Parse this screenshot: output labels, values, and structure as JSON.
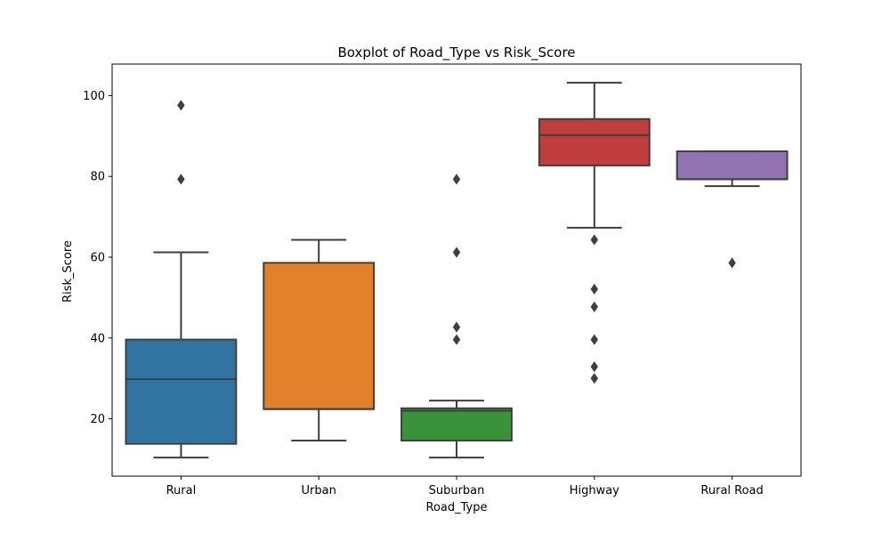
{
  "chart_data": {
    "type": "box",
    "title": "Boxplot of Road_Type vs Risk_Score",
    "xlabel": "Road_Type",
    "ylabel": "Risk_Score",
    "ylim": [
      5.8,
      107.8
    ],
    "yticks": [
      20,
      40,
      60,
      80,
      100
    ],
    "grid": false,
    "categories": [
      "Rural",
      "Urban",
      "Suburban",
      "Highway",
      "Rural Road"
    ],
    "boxes": [
      {
        "category": "Rural",
        "color": "#3274a1",
        "whisker_low": 10.4,
        "q1": 13.8,
        "median": 29.8,
        "q3": 39.6,
        "whisker_high": 61.2,
        "outliers": [
          79.3,
          97.6
        ]
      },
      {
        "category": "Urban",
        "color": "#e1812c",
        "whisker_low": 14.6,
        "q1": 22.4,
        "median": 22.4,
        "q3": 58.6,
        "whisker_high": 64.3,
        "outliers": []
      },
      {
        "category": "Suburban",
        "color": "#3a923a",
        "whisker_low": 10.4,
        "q1": 14.6,
        "median": 22.0,
        "q3": 22.6,
        "whisker_high": 24.5,
        "outliers": [
          39.6,
          42.7,
          61.2,
          79.3
        ]
      },
      {
        "category": "Highway",
        "color": "#c03d3e",
        "whisker_low": 67.3,
        "q1": 82.7,
        "median": 90.2,
        "q3": 94.2,
        "whisker_high": 103.2,
        "outliers": [
          64.3,
          52.1,
          47.7,
          39.6,
          32.9,
          30.0
        ]
      },
      {
        "category": "Rural Road",
        "color": "#9372b2",
        "whisker_low": 77.6,
        "q1": 79.3,
        "median": 79.3,
        "q3": 86.2,
        "whisker_high": 86.2,
        "outliers": [
          58.6
        ]
      }
    ]
  }
}
